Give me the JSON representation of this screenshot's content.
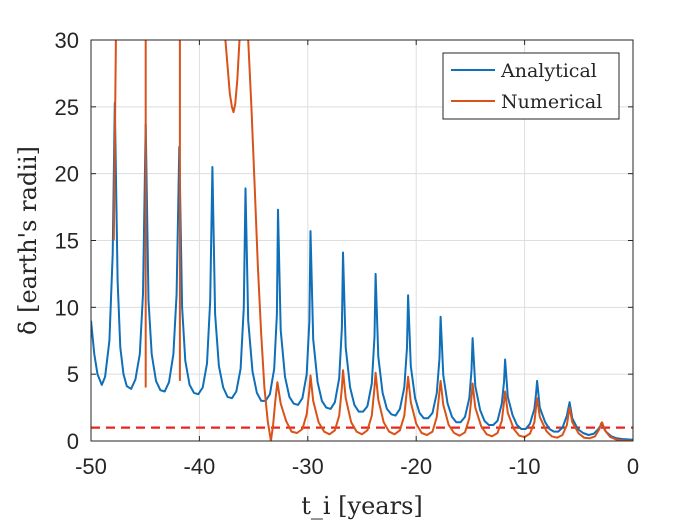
{
  "chart_data": {
    "type": "line",
    "xlabel": "t_i [years]",
    "ylabel": "δ [earth's radii]",
    "xlim": [
      -50,
      0
    ],
    "ylim": [
      0,
      30
    ],
    "x_ticks": [
      -50,
      -40,
      -30,
      -20,
      -10,
      0
    ],
    "y_ticks": [
      0,
      5,
      10,
      15,
      20,
      25,
      30
    ],
    "grid": true,
    "legend_position": "top-right",
    "reference_line": {
      "y": 1,
      "style": "dashed",
      "color": "#e8251f"
    },
    "series": [
      {
        "name": "Analytical",
        "color": "#0f6fb8",
        "points": [
          [
            -50,
            9.0
          ],
          [
            -49.7,
            6.5
          ],
          [
            -49.4,
            5.0
          ],
          [
            -49.0,
            4.2
          ],
          [
            -48.7,
            4.8
          ],
          [
            -48.3,
            7.5
          ],
          [
            -48.0,
            14.0
          ],
          [
            -47.8,
            25.3
          ],
          [
            -47.55,
            12.0
          ],
          [
            -47.3,
            7.0
          ],
          [
            -47.0,
            5.0
          ],
          [
            -46.7,
            4.1
          ],
          [
            -46.3,
            3.9
          ],
          [
            -45.9,
            4.6
          ],
          [
            -45.5,
            6.5
          ],
          [
            -45.2,
            11.0
          ],
          [
            -44.95,
            23.7
          ],
          [
            -44.7,
            10.5
          ],
          [
            -44.4,
            6.5
          ],
          [
            -44.0,
            4.5
          ],
          [
            -43.6,
            3.8
          ],
          [
            -43.2,
            3.7
          ],
          [
            -42.8,
            4.4
          ],
          [
            -42.4,
            6.5
          ],
          [
            -42.1,
            11.0
          ],
          [
            -41.85,
            22.0
          ],
          [
            -41.6,
            10.0
          ],
          [
            -41.3,
            6.0
          ],
          [
            -40.9,
            4.2
          ],
          [
            -40.5,
            3.6
          ],
          [
            -40.1,
            3.5
          ],
          [
            -39.7,
            4.0
          ],
          [
            -39.3,
            5.8
          ],
          [
            -39.0,
            10.5
          ],
          [
            -38.8,
            20.5
          ],
          [
            -38.55,
            9.5
          ],
          [
            -38.2,
            5.6
          ],
          [
            -37.8,
            4.0
          ],
          [
            -37.4,
            3.3
          ],
          [
            -37.0,
            3.2
          ],
          [
            -36.6,
            3.7
          ],
          [
            -36.2,
            5.4
          ],
          [
            -35.9,
            10.0
          ],
          [
            -35.75,
            18.9
          ],
          [
            -35.5,
            9.0
          ],
          [
            -35.1,
            5.2
          ],
          [
            -34.7,
            3.6
          ],
          [
            -34.3,
            3.0
          ],
          [
            -33.9,
            3.0
          ],
          [
            -33.5,
            3.5
          ],
          [
            -33.1,
            5.4
          ],
          [
            -32.85,
            9.5
          ],
          [
            -32.75,
            17.3
          ],
          [
            -32.5,
            8.3
          ],
          [
            -32.1,
            4.8
          ],
          [
            -31.7,
            3.3
          ],
          [
            -31.3,
            2.8
          ],
          [
            -30.9,
            2.7
          ],
          [
            -30.5,
            3.2
          ],
          [
            -30.1,
            5.0
          ],
          [
            -29.85,
            9.0
          ],
          [
            -29.75,
            15.7
          ],
          [
            -29.5,
            7.6
          ],
          [
            -29.1,
            4.4
          ],
          [
            -28.7,
            3.0
          ],
          [
            -28.3,
            2.5
          ],
          [
            -27.9,
            2.4
          ],
          [
            -27.5,
            2.9
          ],
          [
            -27.1,
            4.7
          ],
          [
            -26.85,
            8.5
          ],
          [
            -26.75,
            14.1
          ],
          [
            -26.5,
            7.0
          ],
          [
            -26.1,
            4.0
          ],
          [
            -25.7,
            2.7
          ],
          [
            -25.3,
            2.2
          ],
          [
            -24.9,
            2.2
          ],
          [
            -24.5,
            2.6
          ],
          [
            -24.1,
            4.3
          ],
          [
            -23.85,
            7.8
          ],
          [
            -23.75,
            12.5
          ],
          [
            -23.5,
            6.3
          ],
          [
            -23.1,
            3.6
          ],
          [
            -22.7,
            2.4
          ],
          [
            -22.3,
            2.0
          ],
          [
            -21.9,
            1.9
          ],
          [
            -21.5,
            2.4
          ],
          [
            -21.1,
            4.0
          ],
          [
            -20.85,
            7.0
          ],
          [
            -20.75,
            10.9
          ],
          [
            -20.5,
            5.6
          ],
          [
            -20.1,
            3.2
          ],
          [
            -19.7,
            2.1
          ],
          [
            -19.3,
            1.7
          ],
          [
            -18.9,
            1.7
          ],
          [
            -18.5,
            2.1
          ],
          [
            -18.1,
            3.6
          ],
          [
            -17.85,
            6.2
          ],
          [
            -17.75,
            9.3
          ],
          [
            -17.5,
            4.9
          ],
          [
            -17.1,
            2.8
          ],
          [
            -16.7,
            1.8
          ],
          [
            -16.3,
            1.4
          ],
          [
            -15.9,
            1.4
          ],
          [
            -15.5,
            1.8
          ],
          [
            -15.1,
            3.2
          ],
          [
            -14.9,
            5.3
          ],
          [
            -14.8,
            7.7
          ],
          [
            -14.55,
            4.1
          ],
          [
            -14.1,
            2.3
          ],
          [
            -13.7,
            1.5
          ],
          [
            -13.3,
            1.2
          ],
          [
            -12.9,
            1.2
          ],
          [
            -12.5,
            1.5
          ],
          [
            -12.1,
            2.8
          ],
          [
            -11.9,
            4.4
          ],
          [
            -11.8,
            6.1
          ],
          [
            -11.55,
            3.3
          ],
          [
            -11.1,
            1.9
          ],
          [
            -10.7,
            1.2
          ],
          [
            -10.3,
            0.9
          ],
          [
            -9.9,
            0.9
          ],
          [
            -9.5,
            1.3
          ],
          [
            -9.1,
            2.4
          ],
          [
            -8.95,
            3.5
          ],
          [
            -8.85,
            4.5
          ],
          [
            -8.6,
            2.5
          ],
          [
            -8.1,
            1.4
          ],
          [
            -7.7,
            0.9
          ],
          [
            -7.3,
            0.7
          ],
          [
            -6.9,
            0.7
          ],
          [
            -6.5,
            1.0
          ],
          [
            -6.1,
            1.9
          ],
          [
            -5.95,
            2.5
          ],
          [
            -5.85,
            2.9
          ],
          [
            -5.6,
            1.7
          ],
          [
            -5.1,
            0.9
          ],
          [
            -4.6,
            0.6
          ],
          [
            -4.1,
            0.45
          ],
          [
            -3.6,
            0.55
          ],
          [
            -3.2,
            0.9
          ],
          [
            -2.95,
            1.2
          ],
          [
            -2.8,
            1.2
          ],
          [
            -2.5,
            0.7
          ],
          [
            -2.0,
            0.35
          ],
          [
            -1.5,
            0.2
          ],
          [
            -1.0,
            0.15
          ],
          [
            -0.5,
            0.12
          ],
          [
            0,
            0.1
          ]
        ]
      },
      {
        "name": "Numerical",
        "color": "#d95319",
        "points": [
          [
            -47.9,
            15.0
          ],
          [
            -47.8,
            22.0
          ],
          [
            -47.7,
            30.0
          ],
          null,
          [
            -44.95,
            4.0
          ],
          [
            -44.95,
            30.0
          ],
          null,
          [
            -41.8,
            4.5
          ],
          [
            -41.8,
            30.0
          ],
          null,
          [
            -37.6,
            30.0
          ],
          [
            -37.4,
            28.0
          ],
          [
            -37.2,
            26.0
          ],
          [
            -37.0,
            25.0
          ],
          [
            -36.85,
            24.6
          ],
          [
            -36.7,
            25.2
          ],
          [
            -36.5,
            27.0
          ],
          [
            -36.3,
            30.0
          ],
          null,
          [
            -35.5,
            30.0
          ],
          [
            -35.2,
            25.0
          ],
          [
            -34.9,
            19.0
          ],
          [
            -34.6,
            13.0
          ],
          [
            -34.3,
            8.0
          ],
          [
            -34.0,
            4.0
          ],
          [
            -33.7,
            1.5
          ],
          [
            -33.4,
            0.0
          ],
          [
            -33.2,
            1.2
          ],
          [
            -33.0,
            3.0
          ],
          [
            -32.8,
            4.4
          ],
          [
            -32.5,
            2.8
          ],
          [
            -32.0,
            1.5
          ],
          [
            -31.5,
            0.7
          ],
          [
            -31.0,
            0.6
          ],
          [
            -30.5,
            0.9
          ],
          [
            -30.1,
            2.0
          ],
          [
            -29.85,
            3.8
          ],
          [
            -29.75,
            4.9
          ],
          [
            -29.5,
            3.0
          ],
          [
            -29.0,
            1.4
          ],
          [
            -28.5,
            0.7
          ],
          [
            -28.0,
            0.5
          ],
          [
            -27.5,
            0.8
          ],
          [
            -27.1,
            1.9
          ],
          [
            -26.85,
            4.0
          ],
          [
            -26.75,
            5.3
          ],
          [
            -26.5,
            3.2
          ],
          [
            -26.0,
            1.4
          ],
          [
            -25.5,
            0.7
          ],
          [
            -25.0,
            0.5
          ],
          [
            -24.5,
            0.8
          ],
          [
            -24.1,
            1.9
          ],
          [
            -23.85,
            4.0
          ],
          [
            -23.75,
            5.1
          ],
          [
            -23.5,
            3.1
          ],
          [
            -23.0,
            1.4
          ],
          [
            -22.5,
            0.7
          ],
          [
            -22.0,
            0.5
          ],
          [
            -21.5,
            0.8
          ],
          [
            -21.1,
            1.9
          ],
          [
            -20.85,
            3.9
          ],
          [
            -20.75,
            4.8
          ],
          [
            -20.5,
            2.9
          ],
          [
            -20.0,
            1.3
          ],
          [
            -19.5,
            0.6
          ],
          [
            -19.0,
            0.45
          ],
          [
            -18.5,
            0.7
          ],
          [
            -18.1,
            1.8
          ],
          [
            -17.85,
            3.7
          ],
          [
            -17.75,
            4.5
          ],
          [
            -17.5,
            2.7
          ],
          [
            -17.0,
            1.2
          ],
          [
            -16.5,
            0.6
          ],
          [
            -16.0,
            0.4
          ],
          [
            -15.5,
            0.65
          ],
          [
            -15.1,
            1.7
          ],
          [
            -14.9,
            3.3
          ],
          [
            -14.8,
            4.3
          ],
          [
            -14.55,
            2.5
          ],
          [
            -14.0,
            1.1
          ],
          [
            -13.5,
            0.5
          ],
          [
            -13.0,
            0.35
          ],
          [
            -12.5,
            0.6
          ],
          [
            -12.1,
            1.5
          ],
          [
            -11.9,
            2.9
          ],
          [
            -11.8,
            3.7
          ],
          [
            -11.55,
            2.1
          ],
          [
            -11.0,
            0.9
          ],
          [
            -10.5,
            0.4
          ],
          [
            -10.0,
            0.3
          ],
          [
            -9.5,
            0.55
          ],
          [
            -9.1,
            1.4
          ],
          [
            -8.95,
            2.5
          ],
          [
            -8.85,
            3.2
          ],
          [
            -8.6,
            1.8
          ],
          [
            -8.0,
            0.75
          ],
          [
            -7.5,
            0.35
          ],
          [
            -7.0,
            0.25
          ],
          [
            -6.5,
            0.45
          ],
          [
            -6.1,
            1.2
          ],
          [
            -5.95,
            2.0
          ],
          [
            -5.85,
            2.5
          ],
          [
            -5.6,
            1.4
          ],
          [
            -5.0,
            0.55
          ],
          [
            -4.5,
            0.25
          ],
          [
            -4.0,
            0.2
          ],
          [
            -3.5,
            0.35
          ],
          [
            -3.1,
            0.9
          ],
          [
            -2.95,
            1.3
          ],
          [
            -2.85,
            1.4
          ],
          [
            -2.6,
            0.8
          ],
          [
            -2.1,
            0.3
          ],
          [
            -1.5,
            0.1
          ],
          [
            -1.0,
            0.05
          ],
          [
            -0.5,
            0.02
          ],
          [
            0,
            0.0
          ]
        ]
      }
    ]
  }
}
